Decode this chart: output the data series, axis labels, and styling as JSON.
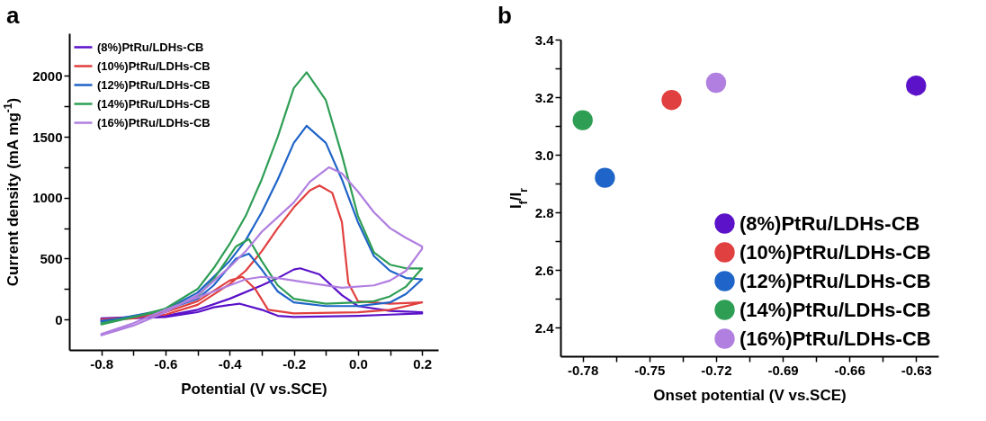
{
  "chart_data": [
    {
      "type": "line",
      "title": "a",
      "xlabel": "Potential (V vs.SCE)",
      "ylabel": "Current density (mA mg$^{-1}$)",
      "xlim": [
        -0.9,
        0.25
      ],
      "ylim": [
        -250,
        2350
      ],
      "xticks": [
        -0.8,
        {
          "value": -0.7,
          "label": null
        },
        -0.6,
        {
          "value": -0.5,
          "label": null
        },
        -0.4,
        {
          "value": -0.3,
          "label": null
        },
        -0.2,
        {
          "value": -0.1,
          "label": null
        },
        {
          "value": 0,
          "label": "0.0"
        },
        {
          "value": 0.1,
          "label": null
        },
        0.2
      ],
      "yticks": [
        0,
        {
          "value": 250,
          "label": null
        },
        500,
        {
          "value": 750,
          "label": null
        },
        1000,
        {
          "value": 1250,
          "label": null
        },
        1500,
        {
          "value": 1750,
          "label": null
        },
        2000
      ],
      "legend": "top left",
      "marker": "none",
      "line_style": "solid",
      "series": [
        {
          "name": "(8%)PtRu/LDHs-CB",
          "color": "#5b12c9",
          "x": [
            -0.8,
            -0.6,
            -0.5,
            -0.4,
            -0.3,
            -0.25,
            -0.2,
            -0.18,
            -0.12,
            -0.05,
            0,
            0.1,
            0.2,
            0.2,
            0.1,
            0,
            -0.2,
            -0.25,
            -0.3,
            -0.37,
            -0.45,
            -0.5,
            -0.6,
            -0.8
          ],
          "values": [
            10,
            30,
            80,
            170,
            280,
            340,
            410,
            420,
            370,
            200,
            110,
            70,
            60,
            50,
            40,
            30,
            20,
            30,
            80,
            130,
            100,
            60,
            20,
            0
          ]
        },
        {
          "name": "(10%)PtRu/LDHs-CB",
          "color": "#e0403f",
          "x": [
            -0.8,
            -0.6,
            -0.5,
            -0.4,
            -0.35,
            -0.3,
            -0.25,
            -0.2,
            -0.15,
            -0.12,
            -0.08,
            -0.05,
            -0.03,
            0,
            0.1,
            0.2,
            0.2,
            0.1,
            0,
            -0.2,
            -0.28,
            -0.32,
            -0.36,
            -0.4,
            -0.5,
            -0.6,
            -0.7,
            -0.8
          ],
          "values": [
            0,
            40,
            120,
            290,
            400,
            560,
            750,
            920,
            1060,
            1100,
            1040,
            800,
            300,
            150,
            130,
            140,
            140,
            80,
            60,
            50,
            80,
            250,
            350,
            320,
            150,
            60,
            10,
            -10
          ]
        },
        {
          "name": "(12%)PtRu/LDHs-CB",
          "color": "#1f64c8",
          "x": [
            -0.8,
            -0.6,
            -0.5,
            -0.4,
            -0.35,
            -0.3,
            -0.25,
            -0.2,
            -0.16,
            -0.1,
            -0.05,
            0,
            0.05,
            0.1,
            0.15,
            0.2,
            0.2,
            0.15,
            0.1,
            0,
            -0.1,
            -0.2,
            -0.25,
            -0.3,
            -0.34,
            -0.38,
            -0.45,
            -0.5,
            -0.6,
            -0.7,
            -0.8
          ],
          "values": [
            -20,
            80,
            220,
            480,
            650,
            880,
            1150,
            1450,
            1590,
            1450,
            1150,
            800,
            520,
            400,
            340,
            330,
            330,
            210,
            140,
            110,
            110,
            140,
            230,
            410,
            540,
            500,
            280,
            170,
            80,
            20,
            -10
          ]
        },
        {
          "name": "(14%)PtRu/LDHs-CB",
          "color": "#2e9e55",
          "x": [
            -0.8,
            -0.7,
            -0.6,
            -0.5,
            -0.45,
            -0.4,
            -0.35,
            -0.3,
            -0.25,
            -0.2,
            -0.16,
            -0.1,
            -0.05,
            0,
            0.05,
            0.1,
            0.15,
            0.2,
            0.2,
            0.15,
            0.1,
            0.05,
            0,
            -0.1,
            -0.2,
            -0.25,
            -0.3,
            -0.34,
            -0.38,
            -0.45,
            -0.5,
            -0.6,
            -0.7,
            -0.8
          ],
          "values": [
            -30,
            20,
            90,
            250,
            420,
            620,
            850,
            1150,
            1500,
            1900,
            2030,
            1800,
            1350,
            850,
            550,
            450,
            420,
            420,
            420,
            270,
            190,
            150,
            140,
            130,
            170,
            280,
            480,
            660,
            600,
            330,
            190,
            80,
            20,
            -40
          ]
        },
        {
          "name": "(16%)PtRu/LDHs-CB",
          "color": "#b07fe0",
          "x": [
            -0.8,
            -0.7,
            -0.6,
            -0.5,
            -0.4,
            -0.35,
            -0.3,
            -0.2,
            -0.15,
            -0.09,
            -0.05,
            0,
            0.05,
            0.1,
            0.15,
            0.2,
            0.2,
            0.15,
            0.1,
            0.05,
            -0.05,
            -0.15,
            -0.25,
            -0.3,
            -0.35,
            -0.4,
            -0.5,
            -0.6,
            -0.7,
            -0.8
          ],
          "values": [
            -130,
            -50,
            60,
            200,
            430,
            560,
            720,
            960,
            1130,
            1250,
            1200,
            1050,
            880,
            750,
            670,
            600,
            580,
            400,
            320,
            280,
            260,
            300,
            340,
            350,
            330,
            280,
            180,
            80,
            -30,
            -120
          ]
        }
      ]
    },
    {
      "type": "scatter",
      "title": "b",
      "xlabel": "Onset potential (V vs.SCE)",
      "ylabel": "I$_{f}$/I$_{r}$",
      "xlim": [
        -0.79,
        -0.62
      ],
      "ylim": [
        2.3,
        3.4
      ],
      "xticks": [
        -0.78,
        {
          "value": -0.765,
          "label": null
        },
        -0.75,
        {
          "value": -0.735,
          "label": null
        },
        -0.72,
        {
          "value": -0.705,
          "label": null
        },
        -0.69,
        {
          "value": -0.675,
          "label": null
        },
        -0.66,
        {
          "value": -0.645,
          "label": null
        },
        -0.63
      ],
      "yticks": [
        2.4,
        {
          "value": 2.5,
          "label": null
        },
        2.6,
        {
          "value": 2.7,
          "label": null
        },
        2.8,
        {
          "value": 2.9,
          "label": null
        },
        {
          "value": 3,
          "label": "3.0"
        },
        {
          "value": 3.1,
          "label": null
        },
        3.2,
        {
          "value": 3.3,
          "label": null
        },
        3.4
      ],
      "legend": "bottom right",
      "marker": "circle",
      "series": [
        {
          "name": "(8%)PtRu/LDHs-CB",
          "color": "#5b12c9",
          "x": [
            -0.63
          ],
          "values": [
            3.24
          ]
        },
        {
          "name": "(10%)PtRu/LDHs-CB",
          "color": "#e0403f",
          "x": [
            -0.74
          ],
          "values": [
            3.19
          ]
        },
        {
          "name": "(12%)PtRu/LDHs-CB",
          "color": "#1f64c8",
          "x": [
            -0.77
          ],
          "values": [
            2.92
          ]
        },
        {
          "name": "(14%)PtRu/LDHs-CB",
          "color": "#2e9e55",
          "x": [
            -0.78
          ],
          "values": [
            3.12
          ]
        },
        {
          "name": "(16%)PtRu/LDHs-CB",
          "color": "#b07fe0",
          "x": [
            -0.72
          ],
          "values": [
            3.25
          ]
        }
      ]
    }
  ]
}
